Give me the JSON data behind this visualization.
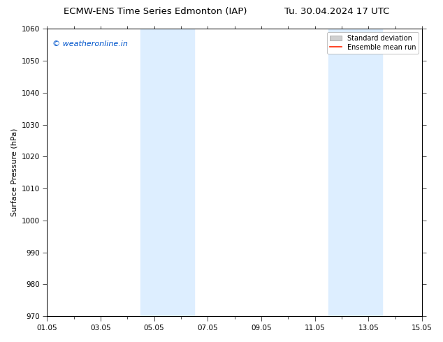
{
  "title_left": "ECMW-ENS Time Series Edmonton (IAP)",
  "title_right": "Tu. 30.04.2024 17 UTC",
  "ylabel": "Surface Pressure (hPa)",
  "xlabel": "",
  "ylim": [
    970,
    1060
  ],
  "yticks": [
    970,
    980,
    990,
    1000,
    1010,
    1020,
    1030,
    1040,
    1050,
    1060
  ],
  "xtick_labels": [
    "01.05",
    "03.05",
    "05.05",
    "07.05",
    "09.05",
    "11.05",
    "13.05",
    "15.05"
  ],
  "xtick_major_positions": [
    0,
    2,
    4,
    6,
    8,
    10,
    12,
    14
  ],
  "xtick_minor_positions": [
    0,
    1,
    2,
    3,
    4,
    5,
    6,
    7,
    8,
    9,
    10,
    11,
    12,
    13,
    14
  ],
  "x_total_days": 14,
  "shaded_regions": [
    {
      "x_start": 3.5,
      "x_end": 5.5
    },
    {
      "x_start": 10.5,
      "x_end": 12.5
    }
  ],
  "shade_color": "#ddeeff",
  "background_color": "#ffffff",
  "watermark_text": "© weatheronline.in",
  "watermark_color": "#0055cc",
  "watermark_fontsize": 8,
  "legend_std_color": "#d0d0d0",
  "legend_mean_color": "#ff2200",
  "title_fontsize": 9.5,
  "axis_fontsize": 8,
  "tick_fontsize": 7.5,
  "ylabel_fontsize": 8
}
